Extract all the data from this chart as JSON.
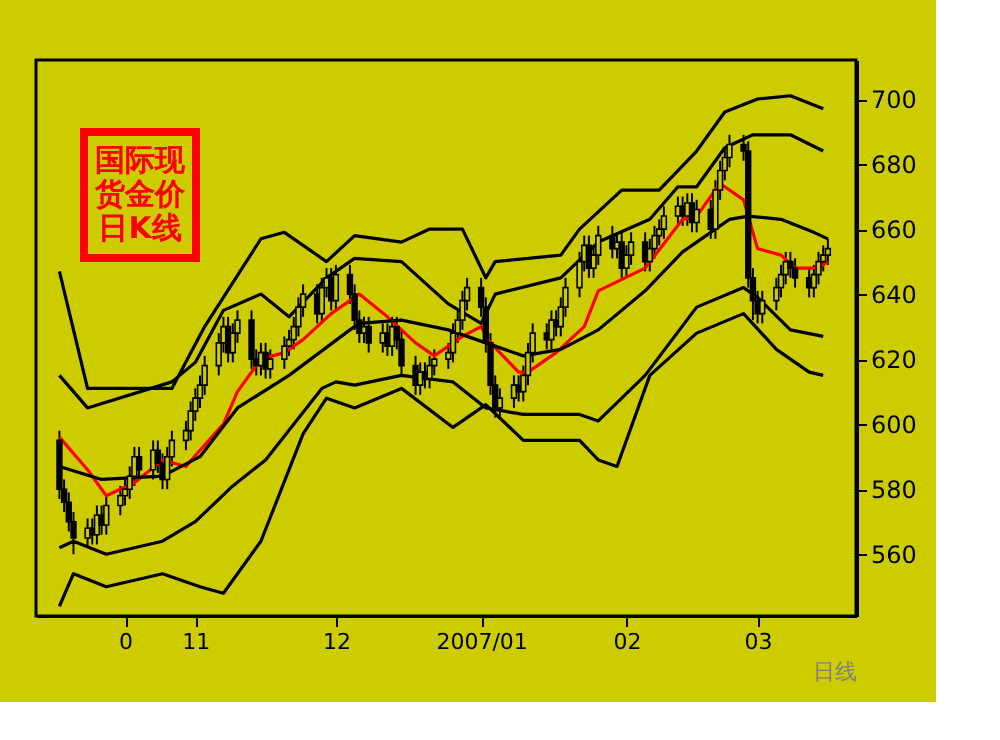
{
  "chart_data": {
    "type": "candlestick",
    "annotations": [
      "国际现货金价日K线"
    ],
    "xlabel": "日线",
    "x": [
      "2006-10-03",
      "2006-10-04",
      "2006-10-05",
      "2006-10-06",
      "2006-10-09",
      "2006-10-10",
      "2006-10-11",
      "2006-10-12",
      "2006-10-13",
      "2006-10-16",
      "2006-10-17",
      "2006-10-18",
      "2006-10-19",
      "2006-10-20",
      "2006-10-23",
      "2006-10-24",
      "2006-10-25",
      "2006-10-26",
      "2006-10-27",
      "2006-10-30",
      "2006-10-31",
      "2006-11-01",
      "2006-11-02",
      "2006-11-03",
      "2006-11-06",
      "2006-11-07",
      "2006-11-08",
      "2006-11-09",
      "2006-11-10",
      "2006-11-13",
      "2006-11-14",
      "2006-11-15",
      "2006-11-16",
      "2006-11-17",
      "2006-11-20",
      "2006-11-21",
      "2006-11-22",
      "2006-11-23",
      "2006-11-24",
      "2006-11-27",
      "2006-11-28",
      "2006-11-29",
      "2006-11-30",
      "2006-12-01",
      "2006-12-04",
      "2006-12-05",
      "2006-12-06",
      "2006-12-07",
      "2006-12-08",
      "2006-12-11",
      "2006-12-12",
      "2006-12-13",
      "2006-12-14",
      "2006-12-15",
      "2006-12-18",
      "2006-12-19",
      "2006-12-20",
      "2006-12-21",
      "2006-12-22",
      "2006-12-25",
      "2006-12-26",
      "2006-12-27",
      "2006-12-28",
      "2006-12-29",
      "2007-01-01",
      "2007-01-02",
      "2007-01-03",
      "2007-01-04",
      "2007-01-05",
      "2007-01-08",
      "2007-01-09",
      "2007-01-10",
      "2007-01-11",
      "2007-01-12",
      "2007-01-15",
      "2007-01-16",
      "2007-01-17",
      "2007-01-18",
      "2007-01-19",
      "2007-01-22",
      "2007-01-23",
      "2007-01-24",
      "2007-01-25",
      "2007-01-26",
      "2007-01-29",
      "2007-01-30",
      "2007-01-31",
      "2007-02-01",
      "2007-02-02",
      "2007-02-05",
      "2007-02-06",
      "2007-02-07",
      "2007-02-08",
      "2007-02-09",
      "2007-02-12",
      "2007-02-13",
      "2007-02-14",
      "2007-02-15",
      "2007-02-16",
      "2007-02-19",
      "2007-02-20",
      "2007-02-21",
      "2007-02-22",
      "2007-02-23",
      "2007-02-26",
      "2007-02-27",
      "2007-02-28",
      "2007-03-01",
      "2007-03-02",
      "2007-03-05",
      "2007-03-06",
      "2007-03-07",
      "2007-03-08",
      "2007-03-09",
      "2007-03-12",
      "2007-03-13",
      "2007-03-14",
      "2007-03-15",
      "2007-03-16"
    ],
    "ohlc": [
      [
        595,
        598,
        577,
        580
      ],
      [
        580,
        583,
        573,
        576
      ],
      [
        576,
        579,
        567,
        570
      ],
      [
        570,
        573,
        560,
        565
      ],
      [
        565,
        571,
        562,
        568
      ],
      [
        568,
        571,
        563,
        566
      ],
      [
        566,
        575,
        563,
        572
      ],
      [
        572,
        575,
        566,
        569
      ],
      [
        569,
        578,
        566,
        575
      ],
      [
        575,
        581,
        572,
        578
      ],
      [
        578,
        583,
        575,
        580
      ],
      [
        580,
        587,
        577,
        584
      ],
      [
        584,
        593,
        581,
        590
      ],
      [
        590,
        593,
        583,
        586
      ],
      [
        586,
        595,
        583,
        592
      ],
      [
        592,
        595,
        585,
        588
      ],
      [
        588,
        591,
        580,
        583
      ],
      [
        583,
        593,
        580,
        590
      ],
      [
        590,
        598,
        587,
        595
      ],
      [
        595,
        601,
        592,
        598
      ],
      [
        598,
        607,
        595,
        604
      ],
      [
        604,
        611,
        601,
        608
      ],
      [
        608,
        615,
        605,
        612
      ],
      [
        612,
        621,
        609,
        618
      ],
      [
        618,
        628,
        615,
        625
      ],
      [
        625,
        633,
        622,
        630
      ],
      [
        630,
        633,
        619,
        622
      ],
      [
        622,
        631,
        619,
        628
      ],
      [
        628,
        635,
        625,
        632
      ],
      [
        632,
        635,
        617,
        620
      ],
      [
        620,
        623,
        615,
        618
      ],
      [
        618,
        625,
        615,
        622
      ],
      [
        622,
        625,
        614,
        617
      ],
      [
        617,
        623,
        614,
        620
      ],
      [
        620,
        627,
        617,
        624
      ],
      [
        624,
        629,
        621,
        626
      ],
      [
        626,
        633,
        623,
        630
      ],
      [
        630,
        639,
        627,
        636
      ],
      [
        636,
        643,
        633,
        640
      ],
      [
        640,
        643,
        631,
        634
      ],
      [
        634,
        645,
        631,
        642
      ],
      [
        642,
        648,
        639,
        645
      ],
      [
        645,
        648,
        635,
        638
      ],
      [
        638,
        649,
        635,
        646
      ],
      [
        646,
        649,
        637,
        640
      ],
      [
        640,
        643,
        629,
        632
      ],
      [
        632,
        635,
        625,
        628
      ],
      [
        628,
        633,
        625,
        630
      ],
      [
        630,
        633,
        622,
        625
      ],
      [
        625,
        631,
        622,
        628
      ],
      [
        628,
        631,
        621,
        624
      ],
      [
        624,
        633,
        621,
        630
      ],
      [
        630,
        633,
        623,
        626
      ],
      [
        626,
        629,
        615,
        618
      ],
      [
        618,
        621,
        609,
        612
      ],
      [
        612,
        619,
        609,
        616
      ],
      [
        616,
        619,
        611,
        614
      ],
      [
        614,
        621,
        611,
        618
      ],
      [
        618,
        623,
        615,
        620
      ],
      [
        620,
        625,
        617,
        622
      ],
      [
        622,
        631,
        619,
        628
      ],
      [
        628,
        635,
        625,
        632
      ],
      [
        632,
        641,
        629,
        638
      ],
      [
        638,
        645,
        635,
        642
      ],
      [
        642,
        645,
        633,
        636
      ],
      [
        636,
        639,
        622,
        625
      ],
      [
        625,
        628,
        609,
        612
      ],
      [
        612,
        615,
        602,
        605
      ],
      [
        605,
        611,
        602,
        608
      ],
      [
        608,
        615,
        605,
        612
      ],
      [
        612,
        615,
        607,
        610
      ],
      [
        610,
        618,
        607,
        615
      ],
      [
        615,
        625,
        612,
        622
      ],
      [
        622,
        631,
        619,
        628
      ],
      [
        628,
        631,
        623,
        626
      ],
      [
        626,
        635,
        623,
        632
      ],
      [
        632,
        635,
        627,
        630
      ],
      [
        630,
        639,
        627,
        636
      ],
      [
        636,
        645,
        633,
        642
      ],
      [
        642,
        653,
        639,
        650
      ],
      [
        650,
        658,
        647,
        655
      ],
      [
        655,
        658,
        645,
        648
      ],
      [
        648,
        655,
        645,
        652
      ],
      [
        652,
        661,
        649,
        658
      ],
      [
        658,
        661,
        651,
        654
      ],
      [
        654,
        659,
        651,
        656
      ],
      [
        656,
        659,
        645,
        648
      ],
      [
        648,
        655,
        645,
        652
      ],
      [
        652,
        659,
        649,
        656
      ],
      [
        656,
        659,
        647,
        650
      ],
      [
        650,
        657,
        647,
        654
      ],
      [
        654,
        661,
        651,
        658
      ],
      [
        658,
        663,
        655,
        660
      ],
      [
        660,
        667,
        657,
        664
      ],
      [
        664,
        670,
        661,
        667
      ],
      [
        667,
        670,
        661,
        664
      ],
      [
        664,
        671,
        661,
        668
      ],
      [
        668,
        671,
        659,
        662
      ],
      [
        662,
        669,
        659,
        666
      ],
      [
        666,
        669,
        657,
        660
      ],
      [
        660,
        675,
        657,
        672
      ],
      [
        672,
        681,
        669,
        678
      ],
      [
        678,
        685,
        675,
        682
      ],
      [
        682,
        689,
        679,
        686
      ],
      [
        686,
        689,
        681,
        684
      ],
      [
        684,
        687,
        642,
        645
      ],
      [
        645,
        648,
        632,
        638
      ],
      [
        638,
        641,
        631,
        634
      ],
      [
        634,
        641,
        631,
        638
      ],
      [
        638,
        645,
        635,
        642
      ],
      [
        642,
        649,
        639,
        646
      ],
      [
        646,
        653,
        643,
        650
      ],
      [
        650,
        653,
        645,
        648
      ],
      [
        648,
        651,
        642,
        645
      ],
      [
        645,
        648,
        639,
        642
      ],
      [
        642,
        649,
        639,
        646
      ],
      [
        646,
        653,
        643,
        650
      ],
      [
        650,
        655,
        647,
        652
      ],
      [
        652,
        657,
        649,
        654
      ]
    ],
    "series": [
      {
        "type": "line",
        "color": "#ff0000",
        "x": [
          "2006-10-03",
          "2006-10-09",
          "2006-10-13",
          "2006-10-19",
          "2006-10-25",
          "2006-10-30",
          "2006-11-02",
          "2006-11-07",
          "2006-11-10",
          "2006-11-15",
          "2006-11-20",
          "2006-11-24",
          "2006-11-30",
          "2006-12-04",
          "2006-12-06",
          "2006-12-12",
          "2006-12-18",
          "2006-12-22",
          "2006-12-28",
          "2007-01-01",
          "2007-01-03",
          "2007-01-09",
          "2007-01-11",
          "2007-01-17",
          "2007-01-23",
          "2007-01-26",
          "2007-02-05",
          "2007-02-13",
          "2007-02-16",
          "2007-02-21",
          "2007-02-26",
          "2007-03-01",
          "2007-03-06",
          "2007-03-09",
          "2007-03-14",
          "2007-03-16"
        ],
        "values": [
          596,
          586,
          578,
          582,
          589,
          587,
          592,
          600,
          610,
          620,
          622,
          626,
          634,
          638,
          640,
          633,
          625,
          621,
          627,
          630,
          625,
          616,
          616,
          622,
          630,
          641,
          648,
          663,
          664,
          674,
          669,
          654,
          652,
          648,
          648,
          650
        ]
      },
      {
        "type": "line",
        "color": "#000000",
        "x": [
          "2006-10-03",
          "2006-10-12",
          "2006-10-25",
          "2006-11-02",
          "2006-11-10",
          "2006-11-21",
          "2006-12-04",
          "2006-12-06",
          "2006-12-15",
          "2006-12-25",
          "2007-01-02",
          "2007-01-10",
          "2007-01-18",
          "2007-01-26",
          "2007-02-05",
          "2007-02-13",
          "2007-02-16",
          "2007-02-23",
          "2007-02-27",
          "2007-03-06",
          "2007-03-13",
          "2007-03-16"
        ],
        "values": [
          587,
          583,
          584,
          590,
          605,
          615,
          629,
          631,
          632,
          629,
          625,
          621,
          623,
          629,
          641,
          653,
          656,
          663,
          664,
          663,
          659,
          657
        ]
      },
      {
        "type": "line",
        "color": "#000000",
        "x": [
          "2006-10-03",
          "2006-10-09",
          "2006-10-17",
          "2006-10-27",
          "2006-11-03",
          "2006-11-15",
          "2006-11-20",
          "2006-11-29",
          "2006-12-05",
          "2006-12-15",
          "2006-12-21",
          "2006-12-28",
          "2007-01-02",
          "2007-01-04",
          "2007-01-18",
          "2007-01-22",
          "2007-01-31",
          "2007-02-08",
          "2007-02-16",
          "2007-02-22",
          "2007-03-01",
          "2007-03-08",
          "2007-03-15"
        ],
        "values": [
          647,
          611,
          611,
          611,
          630,
          657,
          659,
          650,
          658,
          656,
          660,
          660,
          645,
          650,
          652,
          660,
          672,
          672,
          684,
          696,
          700,
          701,
          697
        ]
      },
      {
        "type": "line",
        "color": "#000000",
        "x": [
          "2006-10-03",
          "2006-10-09",
          "2006-10-27",
          "2006-11-01",
          "2006-11-07",
          "2006-11-15",
          "2006-11-21",
          "2006-11-29",
          "2006-12-05",
          "2006-12-15",
          "2006-12-25",
          "2007-01-01",
          "2007-01-04",
          "2007-01-18",
          "2007-01-26",
          "2007-02-06",
          "2007-02-12",
          "2007-02-16",
          "2007-02-22",
          "2007-02-28",
          "2007-03-08",
          "2007-03-15"
        ],
        "values": [
          615,
          605,
          613,
          619,
          635,
          640,
          633,
          645,
          651,
          650,
          637,
          631,
          640,
          645,
          656,
          663,
          673,
          673,
          685,
          689,
          689,
          684
        ]
      },
      {
        "type": "line",
        "color": "#000000",
        "x": [
          "2006-10-03",
          "2006-10-06",
          "2006-10-13",
          "2006-10-25",
          "2006-11-01",
          "2006-11-09",
          "2006-11-16",
          "2006-11-28",
          "2006-12-01",
          "2006-12-05",
          "2006-12-15",
          "2006-12-26",
          "2007-01-02",
          "2007-01-10",
          "2007-01-22",
          "2007-01-26",
          "2007-02-05",
          "2007-02-16",
          "2007-02-26",
          "2007-03-01",
          "2007-03-08",
          "2007-03-15"
        ],
        "values": [
          562,
          564,
          560,
          564,
          570,
          581,
          589,
          611,
          613,
          612,
          615,
          613,
          605,
          603,
          603,
          601,
          615,
          636,
          642,
          639,
          629,
          627
        ]
      },
      {
        "type": "line",
        "color": "#000000",
        "x": [
          "2006-10-03",
          "2006-10-06",
          "2006-10-13",
          "2006-10-25",
          "2006-11-02",
          "2006-11-07",
          "2006-11-15",
          "2006-11-24",
          "2006-11-29",
          "2006-12-05",
          "2006-12-15",
          "2006-12-26",
          "2007-01-02",
          "2007-01-10",
          "2007-01-22",
          "2007-01-26",
          "2007-01-30",
          "2007-02-06",
          "2007-02-16",
          "2007-02-26",
          "2007-03-05",
          "2007-03-12",
          "2007-03-15"
        ],
        "values": [
          544,
          554,
          550,
          554,
          550,
          548,
          564,
          597,
          608,
          605,
          611,
          599,
          606,
          595,
          595,
          589,
          587,
          615,
          628,
          634,
          623,
          616,
          615
        ]
      }
    ],
    "xlim": [
      "2006-09-28",
      "2007-03-22"
    ],
    "xticks": [
      {
        "value": "2006-10-17",
        "label": "0"
      },
      {
        "value": "2006-11-01",
        "label": "11"
      },
      {
        "value": "2006-12-01",
        "label": "12"
      },
      {
        "value": "2007-01-01",
        "label": "2007/01"
      },
      {
        "value": "2007-02-01",
        "label": "02"
      },
      {
        "value": "2007-03-01",
        "label": "03"
      }
    ],
    "ylim": [
      541,
      712
    ],
    "yticks": [
      560,
      580,
      600,
      620,
      640,
      660,
      680,
      700
    ],
    "grid": false
  }
}
